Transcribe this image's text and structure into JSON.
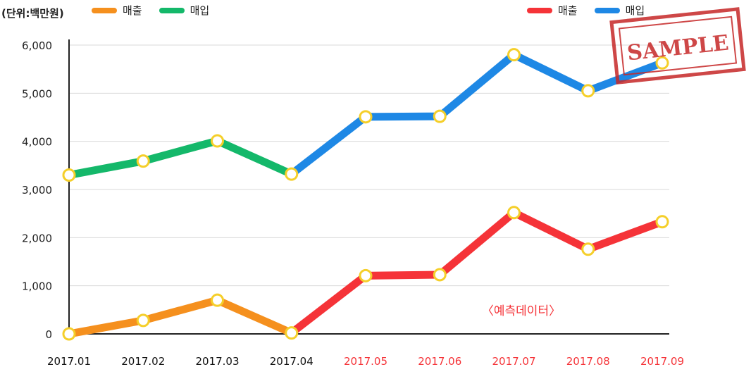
{
  "unit_label": "(단위:백만원)",
  "legend_actual": [
    {
      "name": "매출",
      "color": "#f5901e"
    },
    {
      "name": "매입",
      "color": "#14b86a"
    }
  ],
  "legend_forecast": [
    {
      "name": "매출",
      "color": "#f53338"
    },
    {
      "name": "매입",
      "color": "#1e88e5"
    }
  ],
  "forecast_note": "〈예측데이터〉",
  "stamp_text": "SAMPLE",
  "chart_data": {
    "type": "line",
    "categories": [
      "2017.01",
      "2017.02",
      "2017.03",
      "2017.04",
      "2017.05",
      "2017.06",
      "2017.07",
      "2017.08",
      "2017.09"
    ],
    "forecast_start_index": 4,
    "ylim": [
      0,
      6000
    ],
    "yticks": [
      0,
      1000,
      2000,
      3000,
      4000,
      5000,
      6000
    ],
    "ytick_labels": [
      "0",
      "1,000",
      "2,000",
      "3,000",
      "4,000",
      "5,000",
      "6,000"
    ],
    "grid": true,
    "series": [
      {
        "name": "매출",
        "values": [
          0,
          280,
          700,
          20,
          1210,
          1230,
          2520,
          1760,
          2330
        ],
        "color_actual": "#f5901e",
        "color_forecast": "#f53338"
      },
      {
        "name": "매입",
        "values": [
          3300,
          3590,
          4010,
          3320,
          4510,
          4520,
          5800,
          5050,
          5630
        ],
        "color_actual": "#14b86a",
        "color_forecast": "#1e88e5"
      }
    ],
    "marker_stroke": "#f5cf2a",
    "actual_label_color": "#111111",
    "forecast_label_color": "#f53338"
  }
}
